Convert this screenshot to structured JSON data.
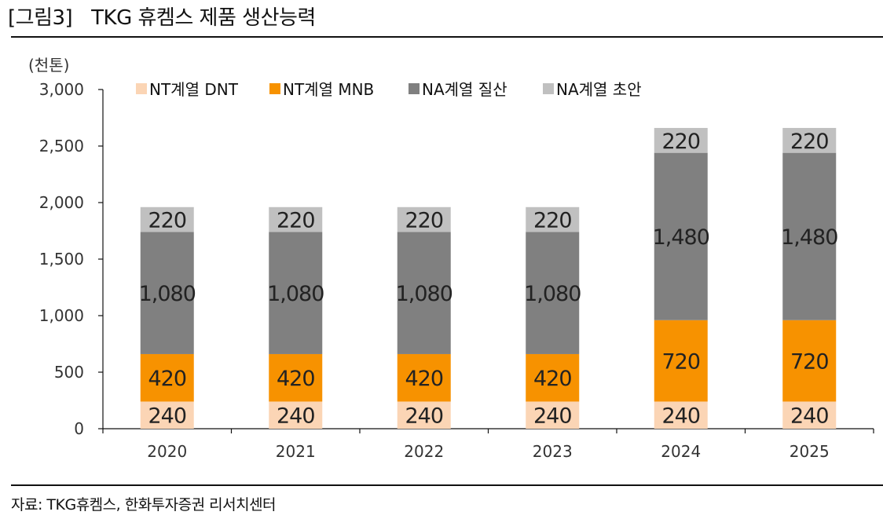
{
  "figure": {
    "label": "[그림3]",
    "title": "TKG 휴켐스 제품 생산능력",
    "source": "자료: TKG휴켐스, 한화투자증권 리서치센터"
  },
  "chart_data": {
    "type": "bar",
    "stacked": true,
    "title": "TKG 휴켐스 제품 생산능력",
    "ylabel": "(천톤)",
    "xlabel": "",
    "ylim": [
      0,
      3000
    ],
    "ytick_values": [
      0,
      500,
      1000,
      1500,
      2000,
      2500,
      3000
    ],
    "ytick_labels": [
      "0",
      "500",
      "1,000",
      "1,500",
      "2,000",
      "2,500",
      "3,000"
    ],
    "categories": [
      "2020",
      "2021",
      "2022",
      "2023",
      "2024",
      "2025"
    ],
    "legend_position": "top",
    "series": [
      {
        "name": "NT계열 DNT",
        "color": "#fbd5b5",
        "values": [
          240,
          240,
          240,
          240,
          240,
          240
        ],
        "labels": [
          "240",
          "240",
          "240",
          "240",
          "240",
          "240"
        ]
      },
      {
        "name": "NT계열 MNB",
        "color": "#f79200",
        "values": [
          420,
          420,
          420,
          420,
          720,
          720
        ],
        "labels": [
          "420",
          "420",
          "420",
          "420",
          "720",
          "720"
        ]
      },
      {
        "name": "NA계열 질산",
        "color": "#808080",
        "values": [
          1080,
          1080,
          1080,
          1080,
          1480,
          1480
        ],
        "labels": [
          "1,080",
          "1,080",
          "1,080",
          "1,080",
          "1,480",
          "1,480"
        ]
      },
      {
        "name": "NA계열 초안",
        "color": "#c0c0c0",
        "values": [
          220,
          220,
          220,
          220,
          220,
          220
        ],
        "labels": [
          "220",
          "220",
          "220",
          "220",
          "220",
          "220"
        ]
      }
    ]
  }
}
